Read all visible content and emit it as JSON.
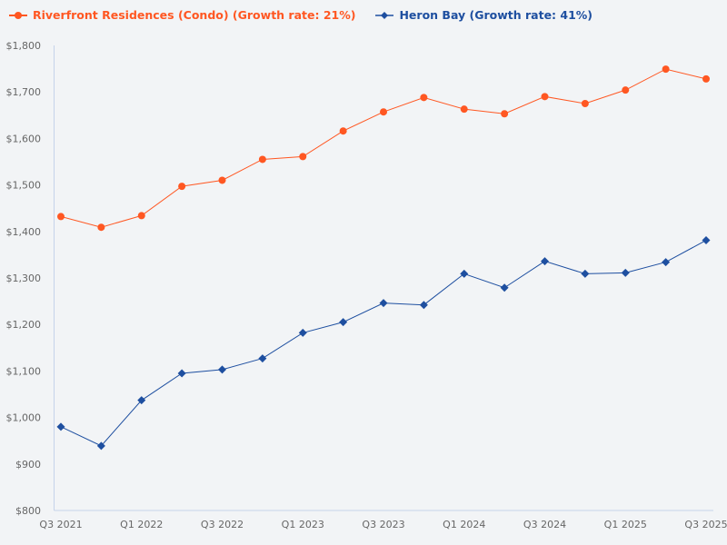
{
  "chart_data": {
    "type": "line",
    "title": "",
    "xlabel": "",
    "ylabel": "",
    "ylim": [
      800,
      1800
    ],
    "yticks": [
      "$800",
      "$900",
      "$1,000",
      "$1,100",
      "$1,200",
      "$1,300",
      "$1,400",
      "$1,500",
      "$1,600",
      "$1,700",
      "$1,800"
    ],
    "ytick_values": [
      800,
      900,
      1000,
      1100,
      1200,
      1300,
      1400,
      1500,
      1600,
      1700,
      1800
    ],
    "x": [
      "Q3 2021",
      "Q4 2021",
      "Q1 2022",
      "Q2 2022",
      "Q3 2022",
      "Q4 2022",
      "Q1 2023",
      "Q2 2023",
      "Q3 2023",
      "Q4 2023",
      "Q1 2024",
      "Q2 2024",
      "Q3 2024",
      "Q4 2024",
      "Q1 2025",
      "Q2 2025",
      "Q3 2025"
    ],
    "xtick_labels": [
      "Q3 2021",
      "Q1 2022",
      "Q3 2022",
      "Q1 2023",
      "Q3 2023",
      "Q1 2024",
      "Q3 2024",
      "Q1 2025",
      "Q3 2025"
    ],
    "grid": false,
    "legend_position": "top-left",
    "series": [
      {
        "name": "Riverfront Residences (Condo) (Growth rate: 21%)",
        "color": "#ff5722",
        "marker": "circle",
        "values": [
          1432,
          1409,
          1434,
          1497,
          1510,
          1555,
          1561,
          1616,
          1657,
          1688,
          1663,
          1653,
          1690,
          1675,
          1704,
          1749,
          1728
        ]
      },
      {
        "name": "Heron Bay (Growth rate: 41%)",
        "color": "#1e4fa0",
        "marker": "diamond",
        "values": [
          980,
          939,
          1037,
          1095,
          1103,
          1127,
          1182,
          1205,
          1246,
          1242,
          1309,
          1279,
          1336,
          1309,
          1311,
          1334,
          1381
        ]
      }
    ]
  }
}
